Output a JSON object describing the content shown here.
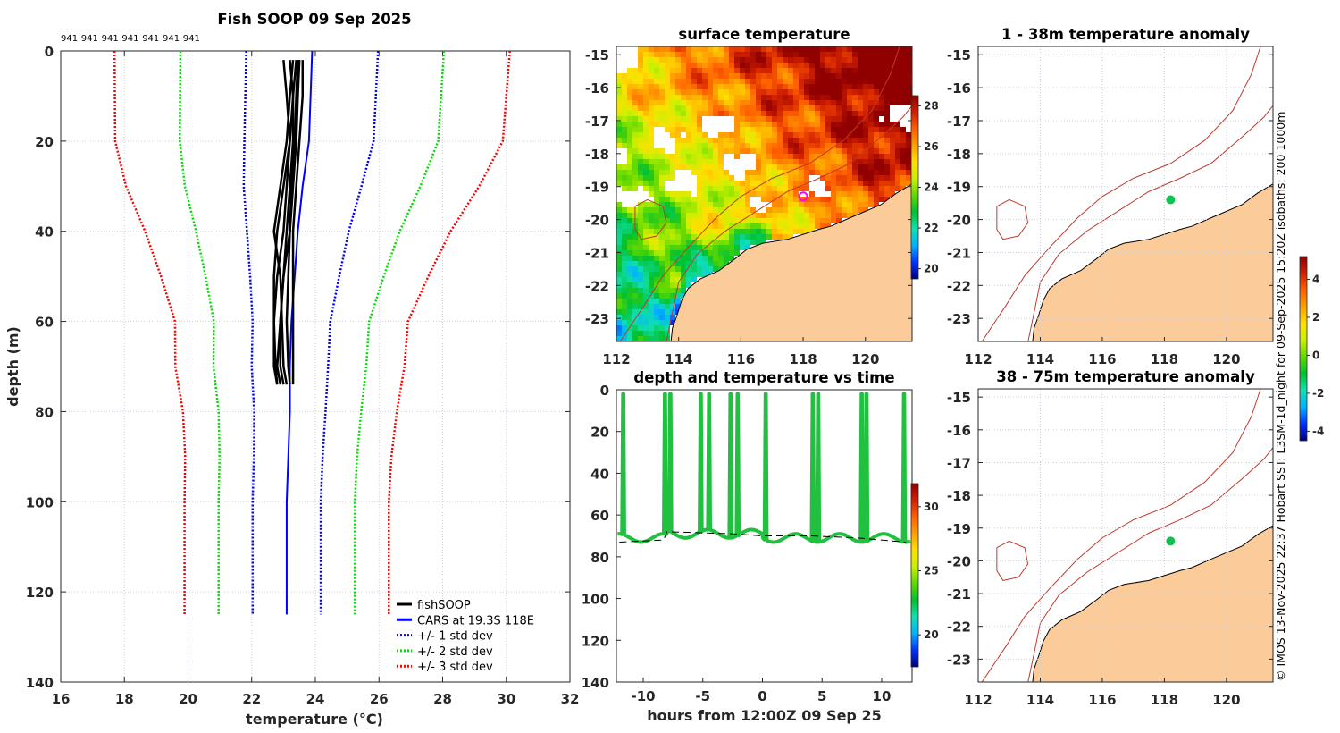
{
  "figure_title": "Fish SOOP 09 Sep 2025",
  "credit": "© IMOS 13-Nov-2025 22:37 Hobart SST: L3SM-1d_night for 09-Sep-2025 15:20Z isobaths: 200  1000m",
  "colors": {
    "fishsoop": "#000000",
    "cars": "#0000ff",
    "sd1": "#0000ff",
    "sd2": "#00dd00",
    "sd3": "#ff0000",
    "trace": "#22c040",
    "land": "#fccb9a",
    "isobath": "#c0392b",
    "ship_dot": "#10c050",
    "ship_marker": "#ff00ff"
  },
  "chart_data": [
    {
      "type": "line",
      "title": "Fish SOOP 09 Sep 2025",
      "xlabel": "temperature (°C)",
      "ylabel": "depth (m)",
      "xlim": [
        16,
        32
      ],
      "ylim": [
        140,
        0
      ],
      "xticks": [
        16,
        18,
        20,
        22,
        24,
        26,
        28,
        30,
        32
      ],
      "yticks": [
        0,
        20,
        40,
        60,
        80,
        100,
        120,
        140
      ],
      "top_labels": [
        "941",
        "941",
        "941",
        "941",
        "941",
        "941",
        "941"
      ],
      "cars": {
        "depth": [
          0,
          10,
          20,
          30,
          40,
          50,
          60,
          70,
          80,
          90,
          100,
          110,
          125
        ],
        "mean": [
          23.9,
          23.85,
          23.8,
          23.6,
          23.45,
          23.35,
          23.25,
          23.2,
          23.2,
          23.15,
          23.1,
          23.1,
          23.1
        ],
        "sd": [
          2.07,
          2.05,
          2.03,
          1.85,
          1.6,
          1.4,
          1.22,
          1.2,
          1.12,
          1.08,
          1.07,
          1.07,
          1.07
        ]
      },
      "fishsoop_profiles": {
        "depth": [
          2,
          10,
          20,
          30,
          40,
          50,
          60,
          70,
          74
        ],
        "temps": [
          [
            23.5,
            23.45,
            23.4,
            23.3,
            23.2,
            23.0,
            22.9,
            22.8,
            22.9
          ],
          [
            23.2,
            23.3,
            23.2,
            23.0,
            22.8,
            22.7,
            22.7,
            22.75,
            22.8
          ],
          [
            23.6,
            23.6,
            23.5,
            23.4,
            23.3,
            23.3,
            23.3,
            23.3,
            23.3
          ],
          [
            23.4,
            23.3,
            23.3,
            23.2,
            23.1,
            23.0,
            22.9,
            22.9,
            23.0
          ],
          [
            23.3,
            23.2,
            23.1,
            22.9,
            22.7,
            22.9,
            22.95,
            23.0,
            23.1
          ],
          [
            23.0,
            23.1,
            23.2,
            23.1,
            23.0,
            22.8,
            22.7,
            22.7,
            22.8
          ],
          [
            23.45,
            23.4,
            23.35,
            23.25,
            23.2,
            23.15,
            23.1,
            23.15,
            23.2
          ]
        ]
      },
      "legend": {
        "position": "bottom-right",
        "entries": [
          "fishSOOP",
          "CARS at 19.3S 118E",
          "+/- 1 std dev",
          "+/- 2 std dev",
          "+/- 3 std dev"
        ]
      }
    },
    {
      "type": "heatmap",
      "title": "surface temperature",
      "xlim": [
        112,
        121.5
      ],
      "ylim": [
        -23.7,
        -14.75
      ],
      "xticks": [
        112,
        114,
        116,
        118,
        120
      ],
      "yticks": [
        -15,
        -16,
        -17,
        -18,
        -19,
        -20,
        -21,
        -22,
        -23
      ],
      "colorbar": {
        "range": [
          19.5,
          28.5
        ],
        "ticks": [
          20,
          22,
          24,
          26,
          28
        ]
      },
      "ship_position": [
        118.0,
        -19.3
      ]
    },
    {
      "type": "scatter",
      "title": "depth and temperature vs time",
      "xlabel": "hours from 12:00Z 09 Sep 25",
      "xlim": [
        -12.25,
        12.55
      ],
      "ylim": [
        140,
        0
      ],
      "xticks": [
        -10,
        -5,
        0,
        5,
        10
      ],
      "yticks": [
        0,
        20,
        40,
        60,
        80,
        100,
        120,
        140
      ],
      "surface_times": [
        -11.7,
        -8.2,
        -7.75,
        -5.2,
        -4.5,
        -2.7,
        -2.1,
        0.25,
        4.2,
        4.65,
        8.3,
        8.7,
        11.85
      ],
      "surface_depth": 2,
      "bottom_depth_range": [
        68,
        75
      ],
      "seabed_line": [
        [
          -12,
          73
        ],
        [
          -8.3,
          72
        ],
        [
          -8.0,
          68
        ],
        [
          -2.5,
          69
        ],
        [
          0,
          70
        ],
        [
          2,
          70
        ],
        [
          4,
          70
        ],
        [
          8,
          71
        ],
        [
          12,
          73
        ]
      ],
      "colorbar": {
        "range": [
          17.5,
          31.8
        ],
        "ticks": [
          20,
          25,
          30
        ]
      }
    },
    {
      "type": "heatmap",
      "title": "1 - 38m temperature anomaly",
      "xlim": [
        112,
        121.5
      ],
      "ylim": [
        -23.7,
        -14.75
      ],
      "xticks": [
        112,
        114,
        116,
        118,
        120
      ],
      "yticks": [
        -15,
        -16,
        -17,
        -18,
        -19,
        -20,
        -21,
        -22,
        -23
      ],
      "ship_position": [
        118.2,
        -19.4
      ]
    },
    {
      "type": "heatmap",
      "title": "38 - 75m temperature anomaly",
      "xlim": [
        112,
        121.5
      ],
      "ylim": [
        -23.7,
        -14.75
      ],
      "xticks": [
        112,
        114,
        116,
        118,
        120
      ],
      "yticks": [
        -15,
        -16,
        -17,
        -18,
        -19,
        -20,
        -21,
        -22,
        -23
      ],
      "ship_position": [
        118.2,
        -19.4
      ],
      "colorbar": {
        "range": [
          -4.5,
          5.2
        ],
        "ticks": [
          -4,
          -2,
          0,
          2,
          4
        ]
      }
    }
  ],
  "geography": {
    "coastline": [
      [
        121.54,
        -18.9
      ],
      [
        121,
        -19.2
      ],
      [
        120.5,
        -19.55
      ],
      [
        119.5,
        -19.95
      ],
      [
        118.9,
        -20.2
      ],
      [
        118.5,
        -20.3
      ],
      [
        117.5,
        -20.6
      ],
      [
        116.7,
        -20.72
      ],
      [
        116.2,
        -20.9
      ],
      [
        115.8,
        -21.2
      ],
      [
        115.3,
        -21.55
      ],
      [
        114.7,
        -21.8
      ],
      [
        114.3,
        -22.1
      ],
      [
        114.1,
        -22.45
      ],
      [
        113.95,
        -22.9
      ],
      [
        113.8,
        -23.3
      ],
      [
        113.75,
        -23.73
      ]
    ],
    "isobath_200": [
      [
        113.6,
        -23.73
      ],
      [
        113.85,
        -22.6
      ],
      [
        114.0,
        -21.9
      ],
      [
        114.6,
        -21.05
      ],
      [
        115.5,
        -20.35
      ],
      [
        116.5,
        -19.75
      ],
      [
        117.5,
        -19.15
      ],
      [
        118.5,
        -18.75
      ],
      [
        119.5,
        -18.3
      ],
      [
        120.5,
        -17.5
      ],
      [
        121.2,
        -16.9
      ],
      [
        121.54,
        -16.5
      ]
    ],
    "isobath_1000": [
      [
        112.1,
        -23.73
      ],
      [
        112.9,
        -22.6
      ],
      [
        113.5,
        -21.7
      ],
      [
        114.3,
        -20.85
      ],
      [
        115.2,
        -19.95
      ],
      [
        116.0,
        -19.3
      ],
      [
        117.0,
        -18.75
      ],
      [
        118.2,
        -18.3
      ],
      [
        119.3,
        -17.6
      ],
      [
        120.2,
        -16.7
      ],
      [
        120.8,
        -15.6
      ],
      [
        121.1,
        -14.75
      ]
    ],
    "isobath_loop": [
      [
        112.6,
        -19.6
      ],
      [
        113.0,
        -19.4
      ],
      [
        113.5,
        -19.6
      ],
      [
        113.6,
        -20.1
      ],
      [
        113.3,
        -20.5
      ],
      [
        112.8,
        -20.6
      ],
      [
        112.6,
        -20.3
      ],
      [
        112.6,
        -19.6
      ]
    ]
  }
}
